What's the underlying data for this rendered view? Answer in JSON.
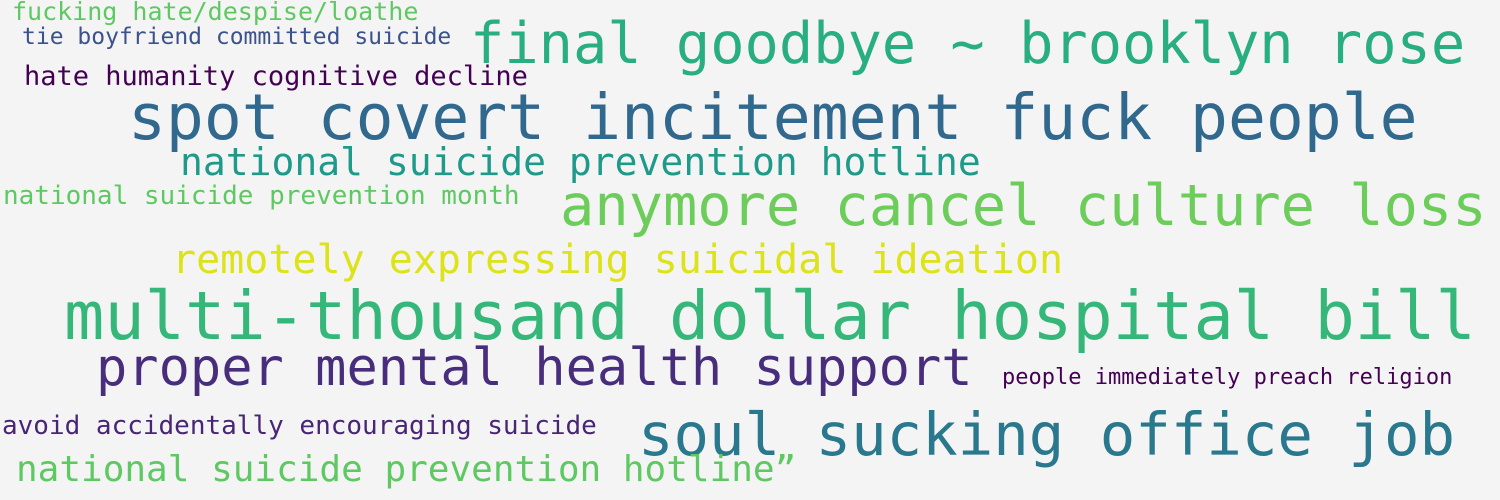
{
  "wordcloud": {
    "words": [
      {
        "text": "fucking hate/despise/loathe",
        "color": "#5ec962"
      },
      {
        "text": "tie boyfriend committed suicide",
        "color": "#3b528b"
      },
      {
        "text": "final goodbye ~ brooklyn rose",
        "color": "#28ae80"
      },
      {
        "text": "hate humanity cognitive decline",
        "color": "#440154"
      },
      {
        "text": "spot covert incitement fuck people",
        "color": "#31688e"
      },
      {
        "text": "national suicide prevention hotline",
        "color": "#1f9a8a"
      },
      {
        "text": "national suicide prevention month",
        "color": "#5ec962"
      },
      {
        "text": "anymore cancel culture loss",
        "color": "#6ccd5a"
      },
      {
        "text": "remotely expressing suicidal ideation",
        "color": "#dde318"
      },
      {
        "text": "multi-thousand dollar hospital bill",
        "color": "#35b779"
      },
      {
        "text": "proper mental health support",
        "color": "#472d7b"
      },
      {
        "text": "people immediately preach religion",
        "color": "#440154"
      },
      {
        "text": "avoid accidentally encouraging suicide",
        "color": "#482576"
      },
      {
        "text": "soul sucking office job",
        "color": "#2a788e"
      },
      {
        "text": "national suicide prevention hotline”",
        "color": "#5ec962"
      }
    ]
  }
}
